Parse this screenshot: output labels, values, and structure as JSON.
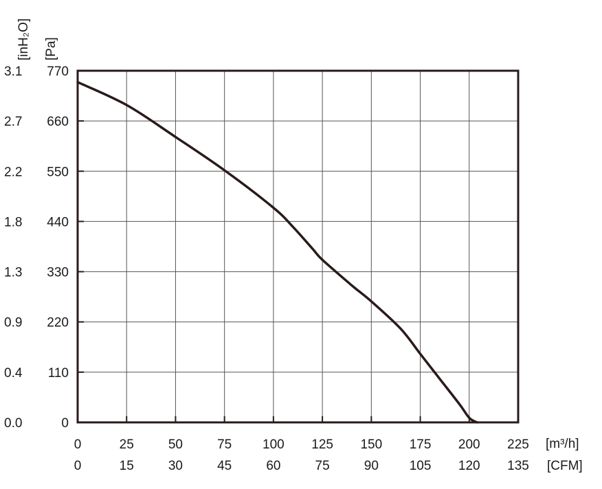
{
  "chart_data": {
    "type": "line",
    "title": "",
    "x_primary": {
      "unit_label": "[m³/h]",
      "range": [
        0,
        225
      ],
      "ticks": [
        "0",
        "25",
        "50",
        "75",
        "100",
        "125",
        "150",
        "175",
        "200",
        "225"
      ]
    },
    "x_secondary": {
      "unit_label": "[CFM]",
      "ticks": [
        "0",
        "15",
        "30",
        "45",
        "60",
        "75",
        "90",
        "105",
        "120",
        "135"
      ]
    },
    "y_primary": {
      "unit_label": "[Pa]",
      "range": [
        0,
        770
      ],
      "ticks": [
        "0",
        "110",
        "220",
        "330",
        "440",
        "550",
        "660",
        "770"
      ]
    },
    "y_secondary": {
      "unit_label": "[inH₂O]",
      "ticks": [
        "0.0",
        "0.4",
        "0.9",
        "1.3",
        "1.8",
        "2.2",
        "2.7",
        "3.1"
      ]
    },
    "grid": true,
    "series": [
      {
        "color": "#2a1a1a",
        "x": [
          0,
          25,
          50,
          75,
          100,
          110,
          120,
          125,
          140,
          150,
          165,
          175,
          185,
          195,
          200,
          204
        ],
        "y": [
          745,
          695,
          625,
          552,
          470,
          428,
          380,
          356,
          300,
          265,
          205,
          150,
          95,
          40,
          10,
          0
        ]
      }
    ]
  }
}
